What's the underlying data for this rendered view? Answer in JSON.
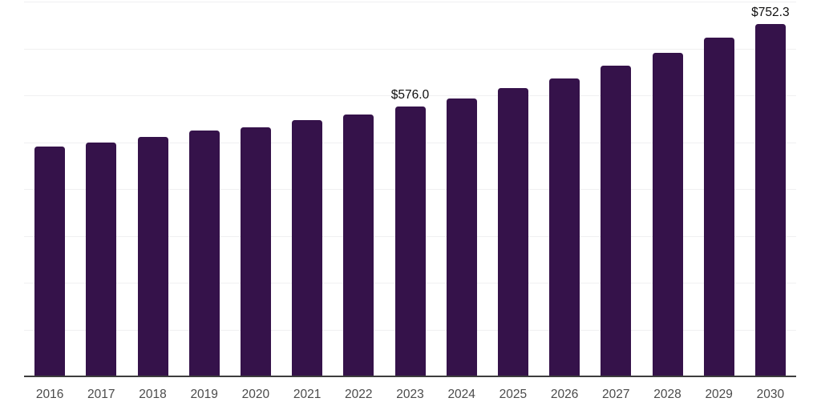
{
  "chart_data": {
    "type": "bar",
    "title": "",
    "xlabel": "",
    "ylabel": "",
    "categories": [
      "2016",
      "2017",
      "2018",
      "2019",
      "2020",
      "2021",
      "2022",
      "2023",
      "2024",
      "2025",
      "2026",
      "2027",
      "2028",
      "2029",
      "2030"
    ],
    "values": [
      491,
      500,
      511,
      524,
      531,
      547,
      559,
      576.0,
      594,
      616,
      636,
      664,
      691,
      723,
      752.3
    ],
    "labeled_points": [
      {
        "category": "2023",
        "label": "$576.0"
      },
      {
        "category": "2030",
        "label": "$752.3"
      }
    ],
    "ylim": [
      0,
      800
    ],
    "gridline_interval": 100,
    "grid": "horizontal-only",
    "y_tick_labels_shown": false,
    "legend": "none",
    "colors": {
      "bar": "#35124a",
      "gridline": "#f0f0f1",
      "axis_line": "#3d3d3d",
      "tick_label": "#4b4b4b",
      "data_label": "#0f0f0f",
      "background": "#ffffff"
    }
  }
}
